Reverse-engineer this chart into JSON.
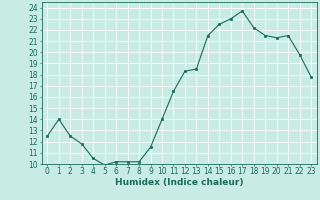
{
  "x": [
    0,
    1,
    2,
    3,
    4,
    5,
    6,
    7,
    8,
    9,
    10,
    11,
    12,
    13,
    14,
    15,
    16,
    17,
    18,
    19,
    20,
    21,
    22,
    23
  ],
  "y": [
    12.5,
    14.0,
    12.5,
    11.8,
    10.5,
    9.9,
    10.2,
    10.2,
    10.2,
    11.5,
    14.0,
    16.5,
    18.3,
    18.5,
    21.5,
    22.5,
    23.0,
    23.7,
    22.2,
    21.5,
    21.3,
    21.5,
    19.8,
    17.8
  ],
  "xlabel": "Humidex (Indice chaleur)",
  "xlim": [
    -0.5,
    23.5
  ],
  "ylim": [
    10,
    24.5
  ],
  "yticks": [
    10,
    11,
    12,
    13,
    14,
    15,
    16,
    17,
    18,
    19,
    20,
    21,
    22,
    23,
    24
  ],
  "xticks": [
    0,
    1,
    2,
    3,
    4,
    5,
    6,
    7,
    8,
    9,
    10,
    11,
    12,
    13,
    14,
    15,
    16,
    17,
    18,
    19,
    20,
    21,
    22,
    23
  ],
  "line_color": "#1a6b5a",
  "marker_color": "#1a6b5a",
  "bg_color": "#c8ece4",
  "grid_color": "#ffffff",
  "tick_label_color": "#1a6b5a",
  "axis_color": "#1a6b5a",
  "xlabel_color": "#1a6b5a",
  "font_size": 5.5,
  "xlabel_font_size": 6.5
}
